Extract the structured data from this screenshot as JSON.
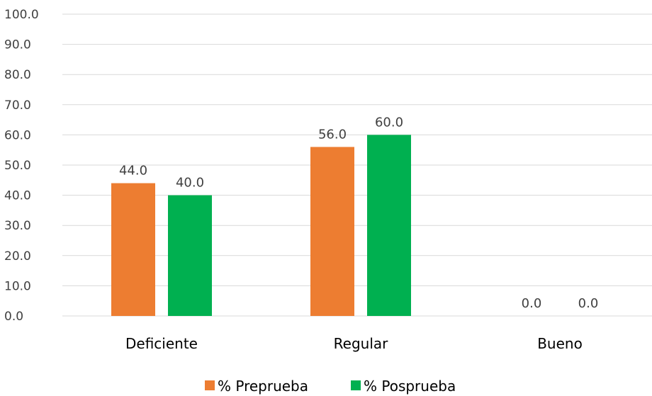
{
  "chart_data": {
    "type": "bar",
    "categories": [
      "Deficiente",
      "Regular",
      "Bueno"
    ],
    "series": [
      {
        "name": "% Preprueba",
        "values": [
          44.0,
          56.0,
          0.0
        ],
        "color": "#ED7D31"
      },
      {
        "name": "% Posprueba",
        "values": [
          40.0,
          60.0,
          0.0
        ],
        "color": "#00B050"
      }
    ],
    "ylim": [
      0,
      100
    ],
    "yticks": [
      "0.0",
      "10.0",
      "20.0",
      "30.0",
      "40.0",
      "50.0",
      "60.0",
      "70.0",
      "80.0",
      "90.0",
      "100.0"
    ],
    "data_labels": [
      [
        "44.0",
        "56.0",
        "0.0"
      ],
      [
        "40.0",
        "60.0",
        "0.0"
      ]
    ],
    "grid": true,
    "legend_position": "bottom"
  }
}
